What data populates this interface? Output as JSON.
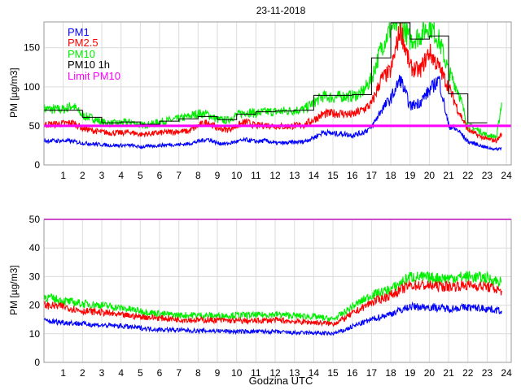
{
  "chart_data": [
    {
      "type": "line",
      "title": "23-11-2018",
      "xlabel": "",
      "ylabel": "PM [µg/m3]",
      "xlim": [
        0,
        24.25
      ],
      "ylim": [
        0,
        183
      ],
      "xticks": [
        1,
        2,
        3,
        4,
        5,
        6,
        7,
        8,
        9,
        10,
        11,
        12,
        13,
        14,
        15,
        16,
        17,
        18,
        19,
        20,
        21,
        22,
        23,
        24
      ],
      "yticks": [
        0,
        50,
        100,
        150
      ],
      "grid": true,
      "legend": {
        "placement": "top-left",
        "entries": [
          "PM1",
          "PM2.5",
          "PM10",
          "PM10 1h",
          "Limit PM10"
        ]
      },
      "x": [
        0,
        0.5,
        1,
        1.5,
        2,
        2.5,
        3,
        3.5,
        4,
        4.5,
        5,
        5.5,
        6,
        6.5,
        7,
        7.5,
        8,
        8.5,
        9,
        9.5,
        10,
        10.5,
        11,
        11.5,
        12,
        12.5,
        13,
        13.5,
        14,
        14.5,
        15,
        15.5,
        16,
        16.5,
        17,
        17.5,
        18,
        18.5,
        19,
        19.5,
        20,
        20.5,
        21,
        21.5,
        22,
        22.5,
        23,
        23.5,
        23.75
      ],
      "series": [
        {
          "name": "PM10",
          "color": "#00ee00",
          "values": [
            72,
            71,
            71,
            76,
            63,
            60,
            55,
            53,
            54,
            55,
            51,
            52,
            55,
            57,
            59,
            62,
            66,
            65,
            58,
            57,
            64,
            68,
            66,
            68,
            68,
            69,
            70,
            71,
            80,
            88,
            86,
            88,
            88,
            92,
            110,
            150,
            175,
            183,
            160,
            165,
            180,
            160,
            120,
            95,
            50,
            45,
            38,
            36,
            80
          ]
        },
        {
          "name": "PM2.5",
          "color": "#ff0000",
          "values": [
            52,
            52,
            53,
            54,
            47,
            44,
            42,
            41,
            41,
            42,
            39,
            40,
            41,
            42,
            43,
            43,
            50,
            55,
            47,
            45,
            50,
            55,
            50,
            51,
            50,
            49,
            50,
            51,
            58,
            65,
            66,
            66,
            64,
            70,
            78,
            110,
            120,
            175,
            125,
            120,
            145,
            125,
            100,
            70,
            45,
            38,
            33,
            31,
            40
          ]
        },
        {
          "name": "PM1",
          "color": "#0000ff",
          "values": [
            31,
            31,
            31,
            30,
            28,
            27,
            26,
            25,
            25,
            25,
            23,
            24,
            25,
            26,
            26,
            27,
            30,
            33,
            28,
            27,
            30,
            32,
            30,
            31,
            28,
            28,
            29,
            30,
            35,
            42,
            40,
            40,
            38,
            41,
            48,
            70,
            85,
            110,
            75,
            80,
            95,
            110,
            50,
            44,
            30,
            26,
            22,
            20,
            22
          ]
        }
      ],
      "step_series": {
        "name": "PM10 1h",
        "color": "#000000",
        "hours": [
          0,
          1,
          2,
          3,
          4,
          5,
          6,
          7,
          8,
          9,
          10,
          11,
          12,
          13,
          14,
          15,
          16,
          17,
          18,
          19,
          20,
          21,
          22
        ],
        "values": [
          70,
          70,
          61,
          54,
          55,
          52,
          56,
          59,
          62,
          58,
          65,
          68,
          69,
          70,
          89,
          89,
          90,
          137,
          182,
          161,
          165,
          91,
          54
        ]
      },
      "limit": {
        "name": "Limit PM10",
        "color": "#ff00ff",
        "value": 50
      }
    },
    {
      "type": "line",
      "title": "",
      "xlabel": "Godzina UTC",
      "ylabel": "PM [µg/m3]",
      "xlim": [
        0,
        24.25
      ],
      "ylim": [
        0,
        50
      ],
      "xticks": [
        1,
        2,
        3,
        4,
        5,
        6,
        7,
        8,
        9,
        10,
        11,
        12,
        13,
        14,
        15,
        16,
        17,
        18,
        19,
        20,
        21,
        22,
        23,
        24
      ],
      "yticks": [
        0,
        10,
        20,
        30,
        40,
        50
      ],
      "grid": true,
      "x": [
        0,
        1,
        2,
        3,
        4,
        5,
        6,
        7,
        8,
        9,
        10,
        11,
        12,
        13,
        14,
        15,
        15.5,
        16,
        17,
        18,
        19,
        20,
        21,
        22,
        23,
        23.75
      ],
      "series": [
        {
          "name": "PM10",
          "color": "#00ee00",
          "values": [
            23,
            21.5,
            20.5,
            20,
            19,
            18,
            17,
            16.5,
            16.5,
            16.3,
            16.5,
            16.5,
            16.8,
            16.3,
            16,
            15,
            17,
            19.5,
            23.5,
            25.5,
            30,
            29.5,
            29.5,
            30,
            29.5,
            28
          ]
        },
        {
          "name": "PM2.5",
          "color": "#ff0000",
          "values": [
            20,
            19.5,
            18,
            17.5,
            16.5,
            16,
            15.5,
            15,
            14.8,
            14.8,
            14.5,
            14.5,
            14.8,
            14.3,
            14,
            13.5,
            15,
            17,
            21,
            23.5,
            27,
            26.8,
            26.5,
            27,
            26.5,
            25
          ]
        },
        {
          "name": "PM1",
          "color": "#0000ff",
          "values": [
            14.5,
            14,
            13.5,
            13,
            12.7,
            12,
            11.5,
            11.3,
            11,
            11,
            10.8,
            10.8,
            10.7,
            10.3,
            10.3,
            10,
            11,
            12.5,
            15,
            17,
            19.5,
            19.3,
            18.8,
            19.3,
            18.8,
            18
          ]
        }
      ],
      "limit": {
        "name": "Limit PM10",
        "color": "#ff00ff",
        "value": 50
      }
    }
  ]
}
